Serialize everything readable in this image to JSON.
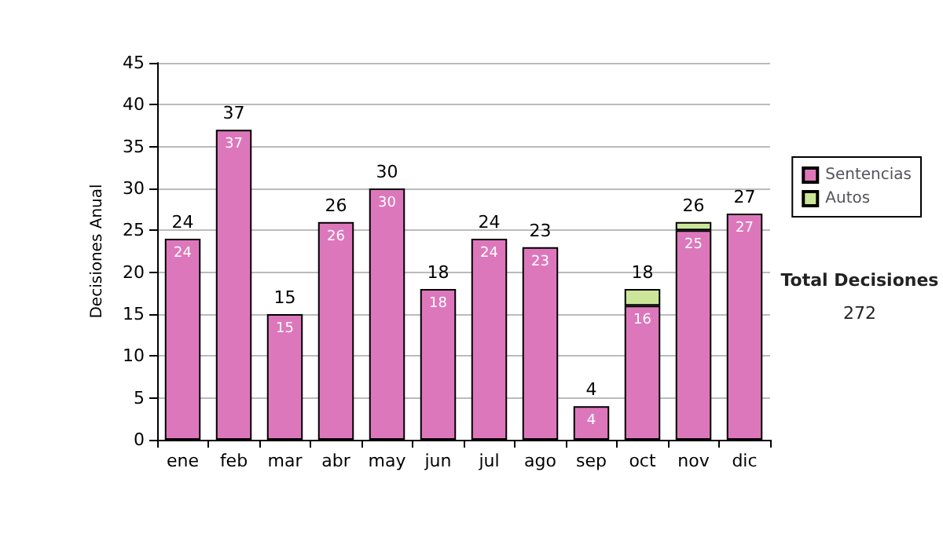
{
  "chart_data": {
    "type": "bar",
    "stacked": true,
    "ylabel": "Decisiones Anual",
    "categories": [
      "ene",
      "feb",
      "mar",
      "abr",
      "may",
      "jun",
      "jul",
      "ago",
      "sep",
      "oct",
      "nov",
      "dic"
    ],
    "series": [
      {
        "name": "Sentencias",
        "color": "#dd77bb",
        "values": [
          24,
          37,
          15,
          26,
          30,
          18,
          24,
          23,
          4,
          16,
          25,
          27
        ],
        "value_labels": [
          "24",
          "37",
          "15",
          "26",
          "30",
          "18",
          "24",
          "23",
          "4",
          "16",
          "25",
          "27"
        ]
      },
      {
        "name": "Autos",
        "color": "#cce699",
        "values": [
          0,
          0,
          0,
          0,
          0,
          0,
          0,
          0,
          0,
          2,
          1,
          0
        ]
      }
    ],
    "totals": [
      "24",
      "37",
      "15",
      "26",
      "30",
      "18",
      "24",
      "23",
      "4",
      "18",
      "26",
      "27"
    ],
    "ylim": [
      0,
      45
    ],
    "yticks": [
      0,
      5,
      10,
      15,
      20,
      25,
      30,
      35,
      40,
      45
    ],
    "grid": "y",
    "legend": "right",
    "annotations": [
      "Total Decisiones",
      "272"
    ]
  }
}
